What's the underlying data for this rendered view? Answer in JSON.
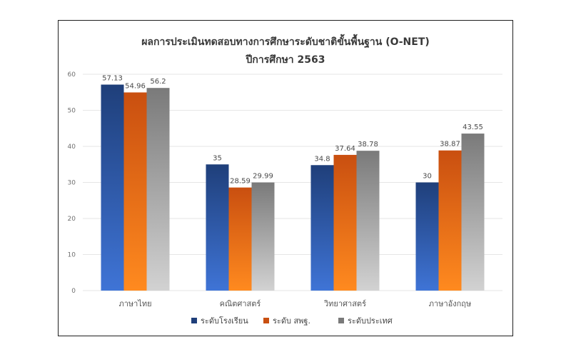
{
  "chart_data": {
    "type": "bar",
    "title": "ผลการประเมินทดสอบทางการศึกษาระดับชาติขั้นพื้นฐาน (O-NET)",
    "subtitle": "ปีการศึกษา 2563",
    "categories": [
      "ภาษาไทย",
      "คณิตศาสตร์",
      "วิทยาศาสตร์",
      "ภาษาอังกฤษ"
    ],
    "series": [
      {
        "name": "ระดับโรงเรียน",
        "values": [
          57.13,
          35,
          34.8,
          30
        ],
        "color_top": "#1f3f7a",
        "color_bottom": "#3f74d6"
      },
      {
        "name": "ระดับ สพฐ.",
        "values": [
          54.96,
          28.59,
          37.64,
          38.87
        ],
        "color_top": "#c94f10",
        "color_bottom": "#ff8a1f"
      },
      {
        "name": "ระดับประเทศ",
        "values": [
          56.2,
          29.99,
          38.78,
          43.55
        ],
        "color_top": "#7a7a7a",
        "color_bottom": "#d2d2d2"
      }
    ],
    "data_labels": [
      [
        "57.13",
        "35",
        "34.8",
        "30"
      ],
      [
        "54.96",
        "28.59",
        "37.64",
        "38.87"
      ],
      [
        "56.2",
        "29.99",
        "38.78",
        "43.55"
      ]
    ],
    "ylim": [
      0,
      60
    ],
    "yticks": [
      "0",
      "10",
      "20",
      "30",
      "40",
      "50",
      "60"
    ],
    "grid": true,
    "legend_position": "bottom"
  }
}
